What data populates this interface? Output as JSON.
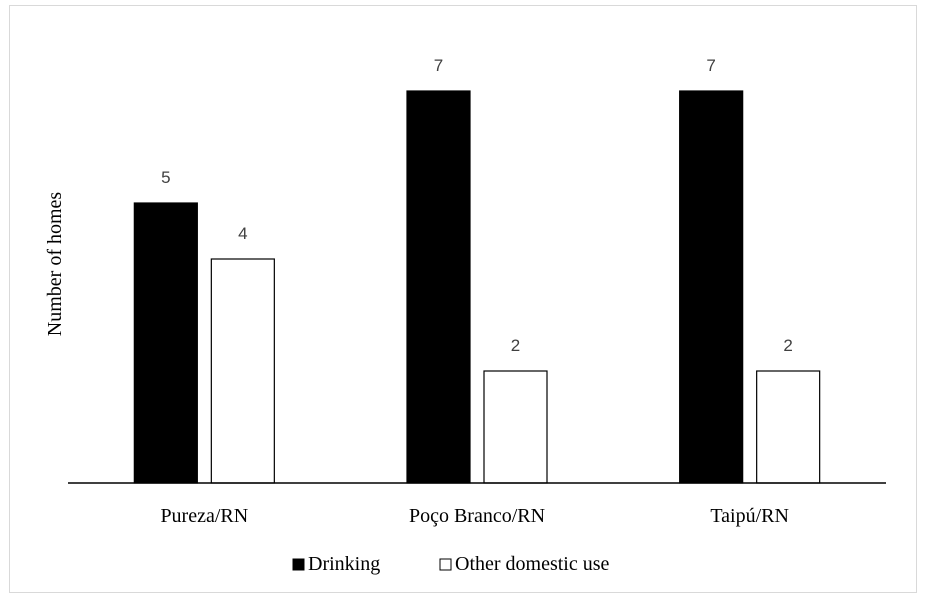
{
  "chart_data": {
    "type": "bar",
    "categories": [
      "Pureza/RN",
      "Poço Branco/RN",
      "Taipú/RN"
    ],
    "series": [
      {
        "name": "Drinking",
        "values": [
          5,
          7,
          7
        ],
        "color": "#000000"
      },
      {
        "name": "Other domestic use",
        "values": [
          4,
          2,
          2
        ],
        "color": "#ffffff"
      }
    ],
    "title": "",
    "xlabel": "",
    "ylabel": "Number of homes",
    "ylim": [
      0,
      7
    ],
    "grid": false,
    "legend": "bottom",
    "data_labels": true
  }
}
